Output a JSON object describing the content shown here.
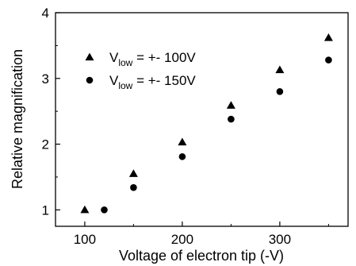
{
  "chart_data": {
    "type": "scatter",
    "title": "",
    "xlabel": "Voltage of electron tip (-V)",
    "ylabel": "Relative magnification",
    "xlim": [
      70,
      370
    ],
    "ylim": [
      0.75,
      4
    ],
    "xticks": [
      100,
      200,
      300
    ],
    "yticks": [
      1,
      2,
      3,
      4
    ],
    "grid": false,
    "legend_position": "top-left",
    "series": [
      {
        "name": "V_low = +- 100V",
        "label_main": "V",
        "label_sub": "low",
        "label_rest": " = +- 100V",
        "marker": "triangle",
        "color": "#000000",
        "x": [
          100,
          150,
          200,
          250,
          300,
          350
        ],
        "y": [
          1.0,
          1.55,
          2.03,
          2.59,
          3.13,
          3.62
        ]
      },
      {
        "name": "V_low = +- 150V",
        "label_main": "V",
        "label_sub": "low",
        "label_rest": " = +- 150V",
        "marker": "circle",
        "color": "#000000",
        "x": [
          120,
          150,
          200,
          250,
          300,
          350
        ],
        "y": [
          1.0,
          1.34,
          1.81,
          2.38,
          2.8,
          3.28
        ]
      }
    ]
  }
}
